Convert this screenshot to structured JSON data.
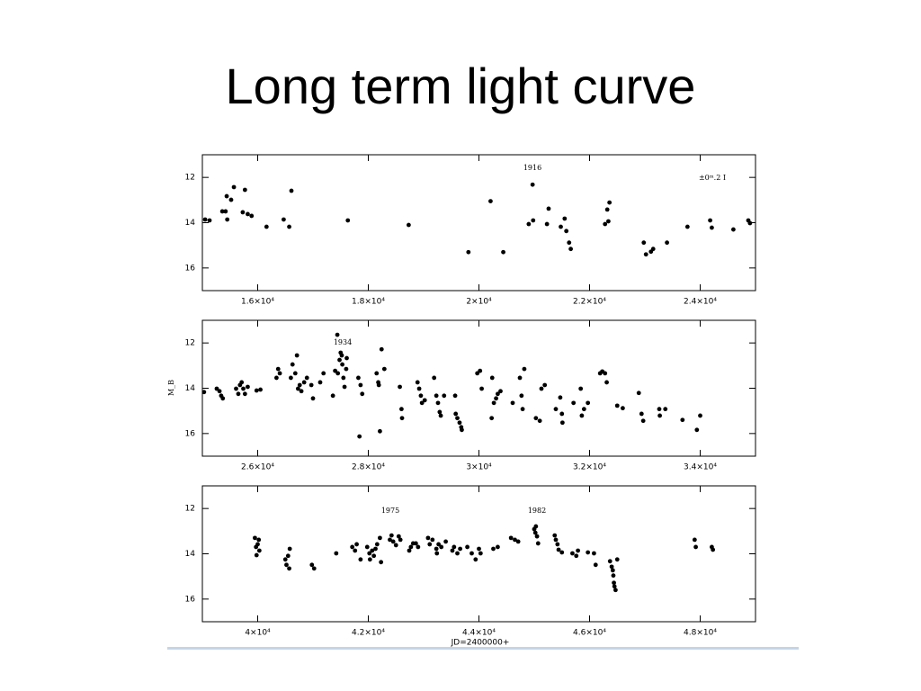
{
  "title": "Long term light curve",
  "chart_data": [
    {
      "type": "scatter",
      "annotations": [
        "1916",
        "±0ᵐ.2 I"
      ],
      "x": [
        15050,
        15130,
        15360,
        15420,
        15440,
        15450,
        15520,
        15570,
        15730,
        15770,
        15820,
        15890,
        16160,
        16470,
        16570,
        16610,
        17630,
        18730,
        19810,
        20210,
        20440,
        20900,
        20970,
        20980,
        21230,
        21260,
        21480,
        21550,
        21580,
        21630,
        21660,
        22280,
        22320,
        22360,
        22340,
        22980,
        23020,
        23110,
        23150,
        23400,
        23770,
        24180,
        24210,
        24600,
        24870,
        24900
      ],
      "values": [
        13.86,
        13.9,
        13.5,
        13.5,
        12.83,
        13.86,
        12.99,
        12.43,
        13.54,
        12.55,
        13.62,
        13.7,
        14.18,
        13.86,
        14.18,
        12.59,
        13.9,
        14.1,
        15.3,
        13.05,
        15.3,
        14.06,
        12.32,
        13.9,
        14.06,
        13.38,
        14.18,
        13.82,
        14.37,
        14.88,
        15.16,
        14.06,
        13.42,
        13.11,
        13.94,
        14.88,
        15.4,
        15.28,
        15.16,
        14.88,
        14.18,
        13.9,
        14.22,
        14.3,
        13.9,
        14.02
      ],
      "color": "#000000",
      "xlim": [
        15000,
        25000
      ],
      "xticks": [
        {
          "value": 16000,
          "label": "1.6×10⁴"
        },
        {
          "value": 18000,
          "label": "1.8×10⁴"
        },
        {
          "value": 20000,
          "label": "2×10⁴"
        },
        {
          "value": 22000,
          "label": "2.2×10⁴"
        },
        {
          "value": 24000,
          "label": "2.4×10⁴"
        }
      ],
      "ylim": [
        17,
        11
      ],
      "yticks": [
        12,
        14,
        16
      ]
    },
    {
      "type": "scatter",
      "ylabel": "M_B",
      "annotations": [
        "1934"
      ],
      "x": [
        25030,
        25260,
        25310,
        25340,
        25370,
        25610,
        25650,
        25680,
        25710,
        25740,
        25770,
        25820,
        25980,
        26050,
        26340,
        26370,
        26400,
        26600,
        26630,
        26680,
        26710,
        26730,
        26760,
        26790,
        26840,
        26890,
        26970,
        27000,
        27130,
        27190,
        27360,
        27440,
        27400,
        27450,
        27480,
        27500,
        27520,
        27530,
        27550,
        27570,
        27600,
        27610,
        27820,
        27860,
        27890,
        27840,
        28150,
        28180,
        28190,
        28210,
        28240,
        28290,
        28570,
        28600,
        28610,
        28890,
        28920,
        28950,
        28970,
        29020,
        29190,
        29230,
        29260,
        29290,
        29310,
        29370,
        29570,
        29580,
        29610,
        29650,
        29680,
        29690,
        29970,
        30020,
        30050,
        30230,
        30240,
        30270,
        30310,
        30340,
        30390,
        30610,
        30740,
        30770,
        30790,
        30820,
        31030,
        31100,
        31130,
        31190,
        31390,
        31470,
        31500,
        31510,
        31710,
        31840,
        31860,
        31900,
        31970,
        32190,
        32230,
        32280,
        32310,
        32500,
        32600,
        32890,
        32940,
        32970,
        33260,
        33270,
        33370,
        33680,
        33940,
        34000
      ],
      "values": [
        14.17,
        14.02,
        14.13,
        14.33,
        14.45,
        14.02,
        14.25,
        13.86,
        13.74,
        14.02,
        14.25,
        13.94,
        14.1,
        14.06,
        13.54,
        13.15,
        13.34,
        13.54,
        12.95,
        13.34,
        12.55,
        14.02,
        13.86,
        14.13,
        13.74,
        13.54,
        13.86,
        14.45,
        13.74,
        13.34,
        14.33,
        11.64,
        13.23,
        13.34,
        12.75,
        12.43,
        12.55,
        12.95,
        13.54,
        13.94,
        13.15,
        12.67,
        13.54,
        13.86,
        14.25,
        16.13,
        13.34,
        13.74,
        13.86,
        15.9,
        12.28,
        13.15,
        13.94,
        14.92,
        15.32,
        13.74,
        14.02,
        14.33,
        14.65,
        14.53,
        13.54,
        14.33,
        14.65,
        15.05,
        15.21,
        14.33,
        14.33,
        15.13,
        15.32,
        15.52,
        15.72,
        15.84,
        13.34,
        13.23,
        14.02,
        15.32,
        13.54,
        14.65,
        14.45,
        14.25,
        14.13,
        14.65,
        13.54,
        14.33,
        14.92,
        13.15,
        15.32,
        15.44,
        14.02,
        13.86,
        14.92,
        14.41,
        15.13,
        15.52,
        14.65,
        14.02,
        15.21,
        14.92,
        14.65,
        13.34,
        13.26,
        13.34,
        13.74,
        14.77,
        14.88,
        14.21,
        15.13,
        15.44,
        14.92,
        15.21,
        14.92,
        15.4,
        15.84,
        15.21
      ],
      "color": "#000000",
      "xlim": [
        25000,
        35000
      ],
      "xticks": [
        {
          "value": 26000,
          "label": "2.6×10⁴"
        },
        {
          "value": 28000,
          "label": "2.8×10⁴"
        },
        {
          "value": 30000,
          "label": "3×10⁴"
        },
        {
          "value": 32000,
          "label": "3.2×10⁴"
        },
        {
          "value": 34000,
          "label": "3.4×10⁴"
        }
      ],
      "ylim": [
        17,
        11
      ],
      "yticks": [
        12,
        14,
        16
      ]
    },
    {
      "type": "scatter",
      "xlabel": "JD=2400000+",
      "annotations": [
        "1975",
        "1982"
      ],
      "x": [
        39950,
        39970,
        40000,
        40030,
        40020,
        39980,
        40500,
        40520,
        40550,
        40570,
        40580,
        40980,
        41020,
        41420,
        41710,
        41760,
        41790,
        41860,
        41980,
        42020,
        42030,
        42070,
        42100,
        42130,
        42160,
        42210,
        42230,
        42390,
        42420,
        42450,
        42500,
        42550,
        42580,
        42740,
        42770,
        42810,
        42860,
        42900,
        43080,
        43110,
        43160,
        43230,
        43240,
        43270,
        43320,
        43400,
        43520,
        43550,
        43610,
        43660,
        43790,
        43870,
        43940,
        44000,
        44030,
        44260,
        44340,
        44580,
        44650,
        44710,
        45000,
        45020,
        45030,
        45050,
        45070,
        45370,
        45390,
        45420,
        45440,
        45500,
        45690,
        45760,
        45790,
        45970,
        46080,
        46110,
        46370,
        46400,
        46420,
        46430,
        46440,
        46450,
        46470,
        46500,
        47900,
        47920,
        48210,
        48230
      ],
      "values": [
        13.3,
        13.7,
        13.58,
        13.86,
        13.38,
        14.06,
        14.25,
        14.49,
        14.09,
        14.65,
        13.78,
        14.49,
        14.65,
        13.98,
        13.7,
        13.86,
        13.58,
        14.25,
        13.7,
        13.98,
        14.25,
        13.86,
        14.09,
        13.78,
        13.58,
        13.3,
        14.37,
        13.38,
        13.19,
        13.46,
        13.62,
        13.23,
        13.38,
        13.86,
        13.7,
        13.54,
        13.54,
        13.7,
        13.3,
        13.58,
        13.38,
        13.78,
        13.98,
        13.58,
        13.7,
        13.46,
        13.86,
        13.7,
        13.98,
        13.78,
        13.7,
        13.98,
        14.25,
        13.78,
        13.98,
        13.78,
        13.7,
        13.3,
        13.38,
        13.46,
        12.91,
        13.07,
        12.79,
        13.23,
        13.54,
        13.19,
        13.38,
        13.58,
        13.82,
        13.94,
        13.98,
        14.09,
        13.86,
        13.94,
        13.98,
        14.49,
        14.33,
        14.57,
        14.73,
        14.96,
        15.28,
        15.44,
        15.6,
        14.25,
        13.38,
        13.7,
        13.7,
        13.82
      ],
      "color": "#000000",
      "xlim": [
        39000,
        49000
      ],
      "xticks": [
        {
          "value": 40000,
          "label": "4×10⁴"
        },
        {
          "value": 42000,
          "label": "4.2×10⁴"
        },
        {
          "value": 44000,
          "label": "4.4×10⁴"
        },
        {
          "value": 46000,
          "label": "4.6×10⁴"
        },
        {
          "value": 48000,
          "label": "4.8×10⁴"
        }
      ],
      "ylim": [
        17,
        11
      ],
      "yticks": [
        12,
        14,
        16
      ]
    }
  ]
}
